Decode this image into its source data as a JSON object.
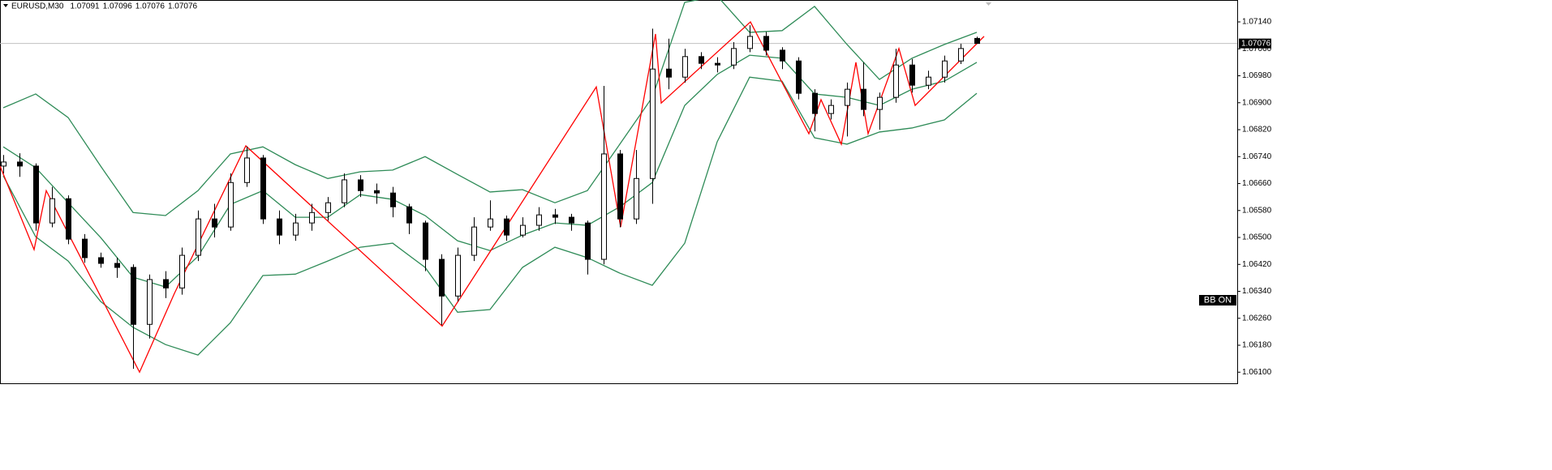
{
  "chart_data": {
    "type": "candlestick",
    "title": "EURUSD,M30",
    "ohlc_values": [
      1.07091,
      1.07096,
      1.07076,
      1.07076
    ],
    "price_line": 1.07076,
    "badge": "BB ON",
    "ylim": [
      1.06067,
      1.07205
    ],
    "yticks": [
      {
        "value": 1.0714,
        "label": "1.07140"
      },
      {
        "value": 1.0706,
        "label": "1.07060"
      },
      {
        "value": 1.0698,
        "label": "1.06980"
      },
      {
        "value": 1.069,
        "label": "1.06900"
      },
      {
        "value": 1.0682,
        "label": "1.06820"
      },
      {
        "value": 1.0674,
        "label": "1.06740"
      },
      {
        "value": 1.0666,
        "label": "1.06660"
      },
      {
        "value": 1.0658,
        "label": "1.06580"
      },
      {
        "value": 1.065,
        "label": "1.06500"
      },
      {
        "value": 1.0642,
        "label": "1.06420"
      },
      {
        "value": 1.0634,
        "label": "1.06340"
      },
      {
        "value": 1.0626,
        "label": "1.06260"
      },
      {
        "value": 1.0618,
        "label": "1.06180"
      },
      {
        "value": 1.061,
        "label": "1.06100"
      }
    ],
    "candles": {
      "up_color": "#ffffff",
      "down_color": "#000000",
      "open": [
        1.06712,
        1.06724,
        1.06712,
        1.06543,
        1.06615,
        1.06495,
        1.0644,
        1.06423,
        1.06411,
        1.06242,
        1.06375,
        1.0635,
        1.06447,
        1.06555,
        1.06531,
        1.06663,
        1.06736,
        1.06555,
        1.06507,
        1.06543,
        1.06574,
        1.06603,
        1.06671,
        1.06639,
        1.06632,
        1.06591,
        1.06543,
        1.06435,
        1.06326,
        1.06447,
        1.06531,
        1.06555,
        1.06507,
        1.06536,
        1.06567,
        1.0656,
        1.06543,
        1.06435,
        1.06748,
        1.06555,
        1.06675,
        1.07,
        1.06976,
        1.07037,
        1.07017,
        1.07012,
        1.07061,
        1.07097,
        1.07056,
        1.07024,
        1.06928,
        1.06868,
        1.06892,
        1.0694,
        1.0688,
        1.06916,
        1.07012,
        1.06952,
        1.06976,
        1.07024,
        1.07091
      ],
      "high": [
        1.06745,
        1.0675,
        1.0672,
        1.0665,
        1.06625,
        1.0651,
        1.06455,
        1.0644,
        1.0642,
        1.0639,
        1.064,
        1.0647,
        1.0658,
        1.066,
        1.0669,
        1.0677,
        1.06745,
        1.0658,
        1.0657,
        1.066,
        1.0662,
        1.0669,
        1.06685,
        1.0666,
        1.0665,
        1.066,
        1.0655,
        1.0645,
        1.0647,
        1.0656,
        1.0661,
        1.06565,
        1.0656,
        1.0659,
        1.06585,
        1.0657,
        1.0655,
        1.0695,
        1.0676,
        1.0676,
        1.0712,
        1.0709,
        1.0706,
        1.0705,
        1.07035,
        1.0708,
        1.0713,
        1.0711,
        1.07065,
        1.07035,
        1.0694,
        1.0691,
        1.0696,
        1.0702,
        1.0693,
        1.0706,
        1.0703,
        1.06995,
        1.0704,
        1.07075,
        1.07096
      ],
      "low": [
        1.0669,
        1.0668,
        1.0652,
        1.0653,
        1.0648,
        1.06425,
        1.0641,
        1.0638,
        1.0611,
        1.062,
        1.0632,
        1.0633,
        1.0643,
        1.065,
        1.0652,
        1.0665,
        1.0654,
        1.0648,
        1.0649,
        1.0652,
        1.0655,
        1.0659,
        1.0662,
        1.066,
        1.0656,
        1.0651,
        1.064,
        1.0624,
        1.0631,
        1.0643,
        1.0652,
        1.0649,
        1.065,
        1.0652,
        1.0654,
        1.0652,
        1.0639,
        1.0642,
        1.0653,
        1.0654,
        1.066,
        1.0694,
        1.0696,
        1.07,
        1.0699,
        1.07,
        1.0705,
        1.0704,
        1.07,
        1.0691,
        1.06815,
        1.0685,
        1.068,
        1.0686,
        1.0682,
        1.069,
        1.0693,
        1.0694,
        1.0696,
        1.07015,
        1.07076
      ],
      "close": [
        1.06724,
        1.06712,
        1.06543,
        1.06615,
        1.06495,
        1.0644,
        1.06423,
        1.06411,
        1.06242,
        1.06375,
        1.0635,
        1.06447,
        1.06555,
        1.06531,
        1.06663,
        1.06736,
        1.06555,
        1.06507,
        1.06543,
        1.06574,
        1.06603,
        1.06671,
        1.06639,
        1.06632,
        1.06591,
        1.06543,
        1.06435,
        1.06326,
        1.06447,
        1.06531,
        1.06555,
        1.06507,
        1.06536,
        1.06567,
        1.0656,
        1.06543,
        1.06435,
        1.06748,
        1.06555,
        1.06675,
        1.07,
        1.06976,
        1.07037,
        1.07017,
        1.07012,
        1.07061,
        1.07097,
        1.07056,
        1.07024,
        1.06928,
        1.06868,
        1.06892,
        1.0694,
        1.0688,
        1.06916,
        1.07012,
        1.06952,
        1.06976,
        1.07024,
        1.07061,
        1.07076
      ]
    },
    "lines": [
      {
        "color": "#2e8b57",
        "x": [
          0,
          2,
          4,
          6,
          8,
          10,
          12,
          14,
          16,
          18,
          20,
          22,
          24,
          26,
          28,
          30,
          32,
          34,
          36,
          38,
          40,
          42,
          44,
          46,
          48,
          50,
          52,
          54,
          56,
          58,
          60
        ],
        "values": [
          1.06885,
          1.06926,
          1.06856,
          1.06712,
          1.06574,
          1.06565,
          1.06639,
          1.06748,
          1.06769,
          1.06716,
          1.06675,
          1.06695,
          1.067,
          1.0674,
          1.06687,
          1.06635,
          1.06642,
          1.06603,
          1.06639,
          1.06777,
          1.06916,
          1.07198,
          1.07217,
          1.07109,
          1.07114,
          1.07186,
          1.07073,
          1.06969,
          1.07032,
          1.07073,
          1.07109
        ]
      },
      {
        "color": "#2e8b57",
        "x": [
          0,
          2,
          4,
          6,
          8,
          10,
          12,
          14,
          16,
          18,
          20,
          22,
          24,
          26,
          28,
          30,
          32,
          34,
          36,
          38,
          40,
          42,
          44,
          46,
          48,
          50,
          52,
          54,
          56,
          58,
          60
        ],
        "values": [
          1.06769,
          1.06707,
          1.06603,
          1.065,
          1.06382,
          1.06353,
          1.06444,
          1.06598,
          1.06639,
          1.0656,
          1.0656,
          1.06627,
          1.06613,
          1.06565,
          1.0649,
          1.06461,
          1.06507,
          1.06543,
          1.06536,
          1.06591,
          1.06663,
          1.06892,
          1.06984,
          1.07041,
          1.07032,
          1.06926,
          1.06916,
          1.06892,
          1.0694,
          1.06964,
          1.0702
        ]
      },
      {
        "color": "#2e8b57",
        "x": [
          0,
          2,
          4,
          6,
          8,
          10,
          12,
          14,
          16,
          18,
          20,
          22,
          24,
          26,
          28,
          30,
          32,
          34,
          36,
          38,
          40,
          42,
          44,
          46,
          48,
          50,
          52,
          54,
          56,
          58,
          60
        ],
        "values": [
          1.06683,
          1.06502,
          1.0643,
          1.0631,
          1.06233,
          1.06182,
          1.06151,
          1.06247,
          1.06387,
          1.06391,
          1.0643,
          1.06471,
          1.06483,
          1.06411,
          1.06278,
          1.06286,
          1.06411,
          1.06471,
          1.0644,
          1.06394,
          1.06358,
          1.06483,
          1.06784,
          1.06976,
          1.06964,
          1.06796,
          1.06777,
          1.06813,
          1.06825,
          1.06849,
          1.06928
        ]
      },
      {
        "color": "#ff0000",
        "x": [
          -0.2,
          1.9,
          2.65,
          8.4,
          10.55,
          14.95,
          27.05,
          36.55,
          38.05,
          40.2,
          40.55,
          46.05,
          49.65,
          50.4,
          51.65,
          52.55,
          53.3,
          55.2,
          56.2,
          60.45
        ],
        "values": [
          1.06712,
          1.06464,
          1.06639,
          1.061,
          1.06334,
          1.06772,
          1.06237,
          1.06947,
          1.06531,
          1.07104,
          1.06899,
          1.0714,
          1.06808,
          1.06909,
          1.06777,
          1.0702,
          1.06808,
          1.07061,
          1.06892,
          1.07097
        ]
      }
    ]
  }
}
